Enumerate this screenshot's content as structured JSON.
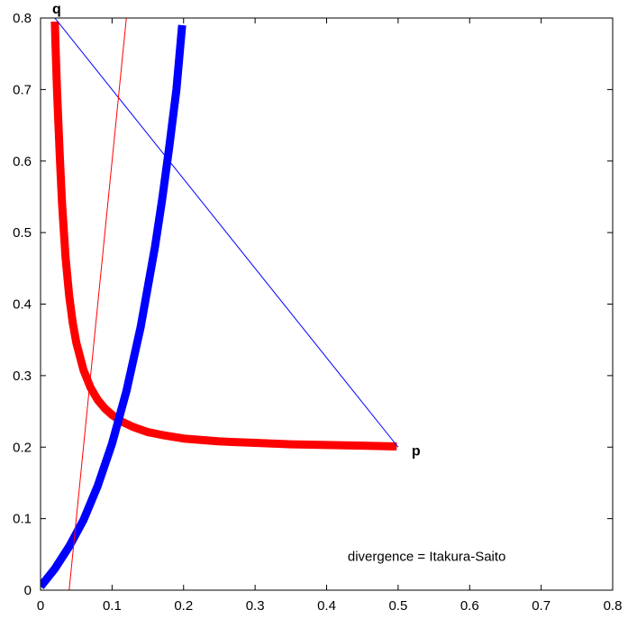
{
  "chart_data": {
    "type": "line",
    "title": "",
    "xlabel": "",
    "ylabel": "",
    "xlim": [
      0,
      0.8
    ],
    "ylim": [
      0,
      0.8
    ],
    "x_ticks": [
      "0",
      "0.1",
      "0.2",
      "0.3",
      "0.4",
      "0.5",
      "0.6",
      "0.7",
      "0.8"
    ],
    "y_ticks": [
      "0",
      "0.1",
      "0.2",
      "0.3",
      "0.4",
      "0.5",
      "0.6",
      "0.7",
      "0.8"
    ],
    "grid": false,
    "legend": "none",
    "annotation": "divergence = Itakura-Saito",
    "points": [
      {
        "label": "p",
        "x": 0.5,
        "y": 0.2
      },
      {
        "label": "q",
        "x": 0.02,
        "y": 0.8
      }
    ],
    "series": [
      {
        "color": "#ff0000",
        "style": "thick",
        "x": [
          0.498,
          0.45,
          0.4,
          0.35,
          0.3,
          0.25,
          0.2,
          0.17,
          0.15,
          0.13,
          0.115,
          0.1,
          0.09,
          0.08,
          0.07,
          0.06,
          0.05,
          0.045,
          0.04,
          0.035,
          0.03,
          0.027,
          0.025,
          0.023,
          0.022,
          0.021,
          0.02
        ],
        "y": [
          0.201,
          0.202,
          0.203,
          0.204,
          0.206,
          0.208,
          0.212,
          0.217,
          0.221,
          0.228,
          0.235,
          0.245,
          0.254,
          0.266,
          0.283,
          0.308,
          0.346,
          0.374,
          0.412,
          0.465,
          0.542,
          0.605,
          0.652,
          0.7,
          0.73,
          0.76,
          0.795
        ]
      },
      {
        "color": "#0000ff",
        "style": "thick",
        "x": [
          0.0,
          0.02,
          0.04,
          0.06,
          0.08,
          0.1,
          0.12,
          0.14,
          0.16,
          0.17,
          0.18,
          0.19,
          0.198
        ],
        "y": [
          0.005,
          0.03,
          0.061,
          0.098,
          0.146,
          0.205,
          0.278,
          0.368,
          0.48,
          0.546,
          0.62,
          0.7,
          0.79
        ]
      },
      {
        "color": "#0000ff",
        "style": "thin",
        "x": [
          0.5,
          0.02
        ],
        "y": [
          0.2,
          0.8
        ]
      },
      {
        "color": "#ff0000",
        "style": "thin",
        "x": [
          0.04,
          0.12
        ],
        "y": [
          0.0,
          0.8
        ]
      }
    ]
  }
}
